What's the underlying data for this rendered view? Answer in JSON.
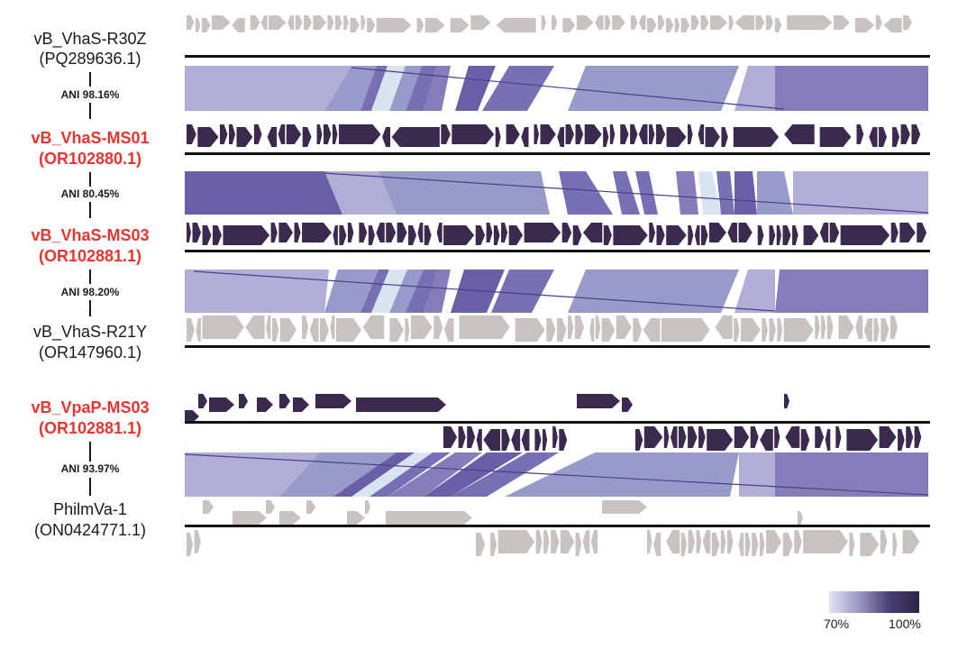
{
  "genomes": [
    {
      "name": "vB_VhaS-R30Z",
      "accession": "(PQ289636.1)",
      "highlight": false
    },
    {
      "name": "vB_VhaS-MS01",
      "accession": "(OR102880.1)",
      "highlight": true
    },
    {
      "name": "vB_VhaS-MS03",
      "accession": "(OR102881.1)",
      "highlight": true
    },
    {
      "name": "vB_VhaS-R21Y",
      "accession": "(OR147960.1)",
      "highlight": false
    },
    {
      "name": "vB_VpaP-MS03",
      "accession": "(OR102881.1)",
      "highlight": true
    },
    {
      "name": "PhilmVa-1",
      "accession": "(ON0424771.1)",
      "highlight": false
    }
  ],
  "comparisons": [
    {
      "ani": "ANI 98.16%"
    },
    {
      "ani": "ANI 80.45%"
    },
    {
      "ani": "ANI 98.20%"
    },
    {
      "ani": "ANI 93.97%"
    }
  ],
  "legend": {
    "min_label": "70%",
    "max_label": "100%"
  },
  "colors": {
    "highlight_text": "#e8352f",
    "gene_grey": "#c8c3c1",
    "gene_dark": "#3b2a4e",
    "identity_low": "#dfe6f2",
    "identity_high": "#4a3f74"
  }
}
